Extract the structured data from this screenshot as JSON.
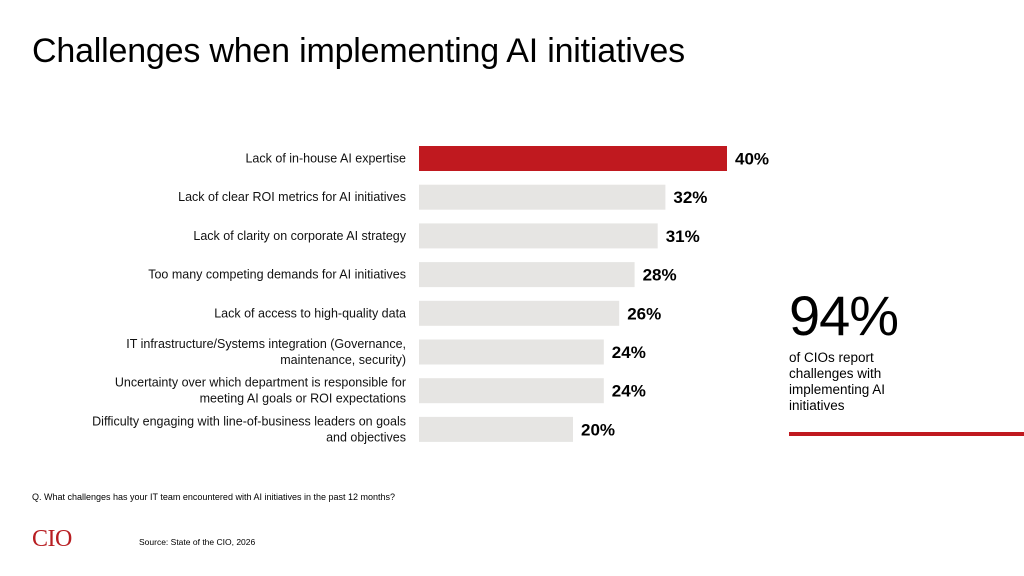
{
  "title": "Challenges when implementing AI initiatives",
  "colors": {
    "accent": "#c0191f",
    "bar": "#e6e5e3",
    "text": "#000000",
    "logo": "#b81e22"
  },
  "chart_data": {
    "type": "bar",
    "orientation": "horizontal",
    "unit": "%",
    "categories": [
      [
        "Lack of in-house AI expertise"
      ],
      [
        "Lack of clear ROI metrics for AI initiatives"
      ],
      [
        "Lack of clarity on corporate AI strategy"
      ],
      [
        "Too many competing demands for AI initiatives"
      ],
      [
        "Lack of access to high-quality data"
      ],
      [
        "IT infrastructure/Systems integration (Governance,",
        "maintenance, security)"
      ],
      [
        "Uncertainty over which department is responsible for",
        "meeting AI goals or ROI expectations"
      ],
      [
        "Difficulty engaging with line-of-business leaders on goals",
        "and objectives"
      ]
    ],
    "values": [
      40,
      32,
      31,
      28,
      26,
      24,
      24,
      20
    ],
    "value_labels": [
      "40%",
      "32%",
      "31%",
      "28%",
      "26%",
      "24%",
      "24%",
      "20%"
    ],
    "highlight_index": 0,
    "xlim": [
      0,
      40
    ],
    "grid": false,
    "legend": "none"
  },
  "callout": {
    "value": "94%",
    "text": "of CIOs report challenges with implementing AI initiatives"
  },
  "question": "Q. What challenges has your IT team encountered with AI initiatives in the past 12 months?",
  "logo_text": "CIO",
  "source": "Source: State of the CIO, 2026"
}
